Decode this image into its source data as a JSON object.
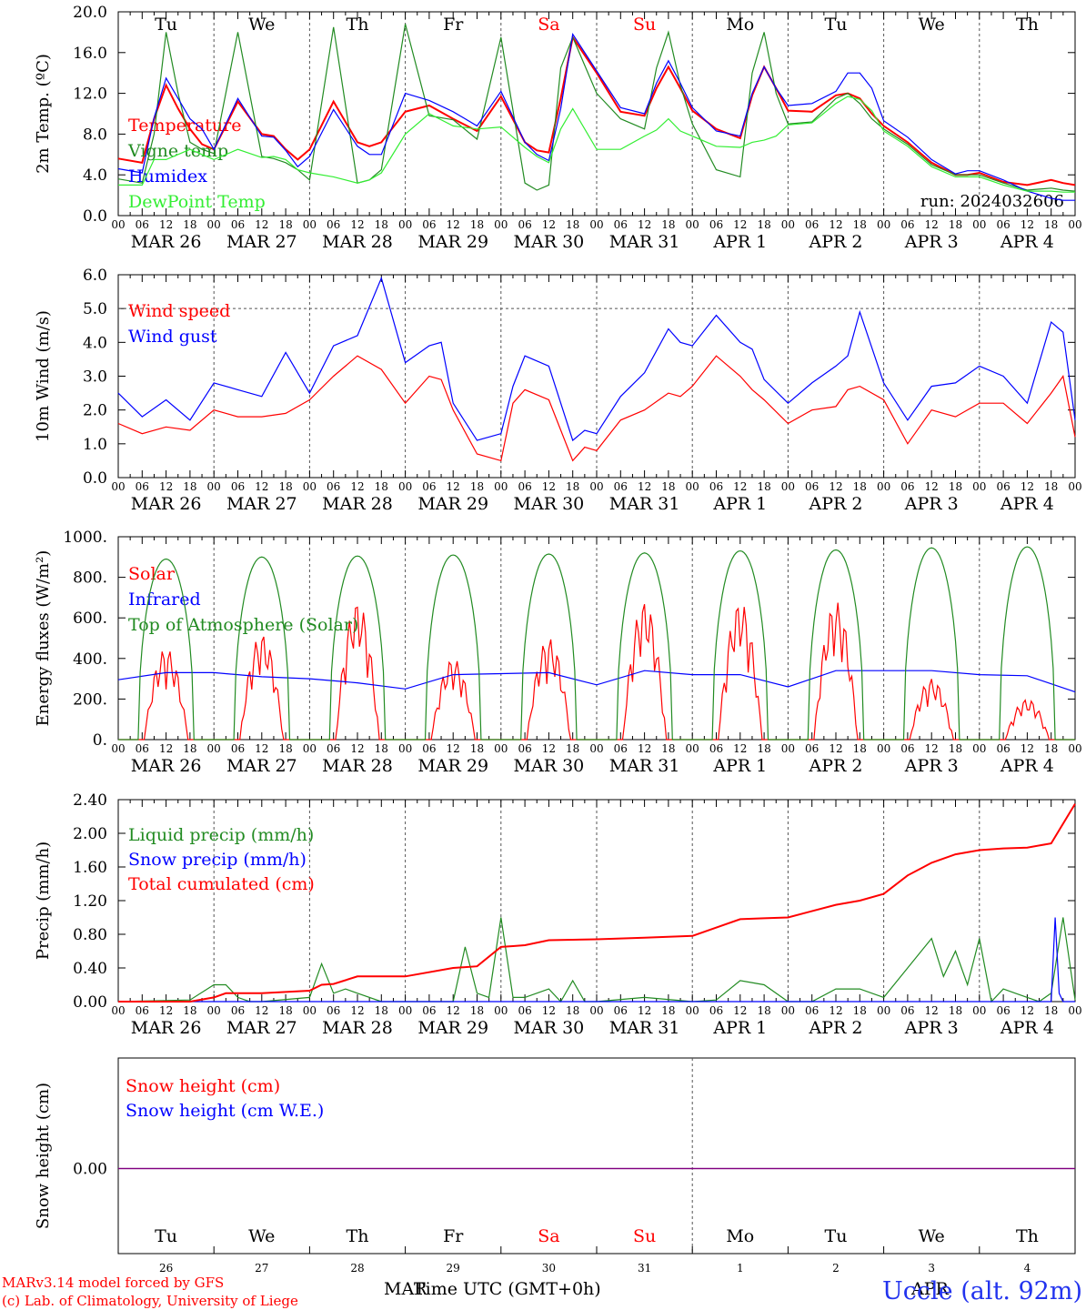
{
  "colors": {
    "red": "#ff0000",
    "green": "#228b22",
    "blue": "#0000ff",
    "lightgreen": "#33ee33",
    "purple": "#800080",
    "grid": "#555555"
  },
  "time_axis": {
    "hour_ticks": [
      "00",
      "06",
      "12",
      "18"
    ],
    "final_tick": "00",
    "date_labels": [
      "MAR 26",
      "MAR 27",
      "MAR 28",
      "MAR 29",
      "MAR 30",
      "MAR 31",
      "APR  1",
      "APR  2",
      "APR  3",
      "APR  4"
    ],
    "day_names": [
      "Tu",
      "We",
      "Th",
      "Fr",
      "Sa",
      "Su",
      "Mo",
      "Tu",
      "We",
      "Th"
    ],
    "day_colors": [
      "black",
      "black",
      "black",
      "black",
      "red",
      "red",
      "black",
      "black",
      "black",
      "black"
    ],
    "day_numbers": [
      "26",
      "27",
      "28",
      "29",
      "30",
      "31",
      "1",
      "2",
      "3",
      "4"
    ],
    "month_left": "MAR",
    "month_right": "APR",
    "xlabel": "Time UTC (GMT+0h)"
  },
  "footer": {
    "model_line": "MARv3.14 model forced by GFS",
    "credit_line": "(c) Lab. of Climatology, University of Liege",
    "station": "Uccle (alt. 92m)"
  },
  "chart_data": [
    {
      "type": "line",
      "ylabel": "2m Temp. (ºC)",
      "ylim": [
        0,
        20
      ],
      "yticks": [
        "0.0",
        "4.0",
        "8.0",
        "12.0",
        "16.0",
        "20.0"
      ],
      "run_label": "run: 2024032606",
      "x_hours": [
        0,
        6,
        9,
        12,
        15,
        18,
        21,
        24,
        30,
        36,
        39,
        42,
        45,
        48,
        54,
        60,
        63,
        66,
        72,
        78,
        84,
        90,
        96,
        102,
        105,
        108,
        111,
        114,
        120,
        126,
        132,
        135,
        138,
        141,
        144,
        150,
        156,
        159,
        162,
        165,
        168,
        174,
        180,
        183,
        186,
        189,
        192,
        198,
        204,
        210,
        213,
        216,
        222,
        228,
        234,
        237,
        240
      ],
      "series": [
        {
          "name": "Temperature",
          "color": "red",
          "values": [
            5.6,
            5.2,
            9.5,
            12.8,
            10.5,
            8.5,
            7,
            6.5,
            11.2,
            8,
            7.8,
            6.5,
            5.5,
            6.5,
            11.2,
            7.2,
            6.8,
            7.2,
            10.2,
            10.8,
            9.5,
            8.3,
            11.7,
            7.2,
            6.4,
            6.2,
            11.5,
            17.5,
            14,
            10.2,
            9.8,
            12.5,
            14.6,
            12.5,
            10.3,
            8.5,
            7.6,
            11.8,
            14.6,
            12.5,
            10.3,
            10.2,
            11.8,
            12,
            11.5,
            10,
            8.8,
            7.2,
            5.2,
            4,
            4,
            4.2,
            3.3,
            3,
            3.5,
            3.2,
            3
          ]
        },
        {
          "name": "Vigne temp",
          "color": "green",
          "values": [
            3.6,
            3.2,
            8,
            18,
            12,
            7.2,
            6.5,
            6.1,
            18,
            5.8,
            5.6,
            5.2,
            4.5,
            3.5,
            18.5,
            3.2,
            3.5,
            4.5,
            18.8,
            9.8,
            9.4,
            7.5,
            17.5,
            3.2,
            2.5,
            3,
            14.5,
            17.5,
            12,
            9.5,
            8.5,
            14.5,
            18,
            12.8,
            9,
            4.5,
            3.8,
            14,
            18,
            12,
            9,
            9.2,
            11.5,
            12,
            11,
            9.5,
            8.5,
            7,
            5,
            4,
            4,
            4,
            3.2,
            2.5,
            2.7,
            2.5,
            2.4
          ]
        },
        {
          "name": "Humidex",
          "color": "blue",
          "values": [
            4.6,
            4.2,
            9.6,
            13.5,
            11.5,
            9.5,
            8.5,
            6.5,
            11.5,
            7.8,
            7.7,
            6.4,
            4.8,
            5.8,
            10.4,
            6.8,
            6,
            6,
            12,
            11.3,
            10.2,
            8.8,
            12.2,
            7.2,
            6,
            5.4,
            10.5,
            17.8,
            14.2,
            10.6,
            10,
            13,
            15.2,
            13,
            10.6,
            8.3,
            7.8,
            12,
            14.6,
            12.5,
            10.8,
            11,
            12.2,
            14,
            14,
            12.5,
            9.3,
            7.7,
            5.5,
            4.1,
            4.4,
            4.4,
            3.5,
            2.4,
            1.7,
            1.5,
            1.5
          ]
        },
        {
          "name": "DewPoint Temp",
          "color": "lightgreen",
          "values": [
            3,
            3,
            5.5,
            5.5,
            6,
            6.5,
            6,
            5.5,
            6.5,
            5.7,
            5.8,
            5.5,
            4.5,
            4.2,
            3.8,
            3.2,
            3.5,
            4.2,
            8,
            10,
            8.8,
            8.5,
            8.7,
            6.7,
            5.8,
            5.2,
            8.5,
            10.5,
            6.5,
            6.5,
            7.8,
            8.4,
            9.5,
            8.3,
            7.8,
            6.8,
            6.7,
            7.2,
            7.4,
            7.8,
            8.9,
            9.1,
            11,
            11.7,
            11.4,
            10.3,
            8.3,
            6.8,
            4.8,
            3.8,
            3.8,
            3.8,
            3,
            2.4,
            2.4,
            2.3,
            2.3
          ]
        }
      ]
    },
    {
      "type": "line",
      "ylabel": "10m Wind (m/s)",
      "ylim": [
        0,
        6
      ],
      "yticks": [
        "0.0",
        "1.0",
        "2.0",
        "3.0",
        "4.0",
        "5.0",
        "6.0"
      ],
      "x_hours": [
        0,
        6,
        12,
        18,
        24,
        30,
        36,
        42,
        48,
        54,
        60,
        66,
        72,
        78,
        81,
        84,
        90,
        96,
        99,
        102,
        108,
        114,
        117,
        120,
        126,
        132,
        138,
        141,
        144,
        150,
        156,
        159,
        162,
        168,
        174,
        180,
        183,
        186,
        192,
        198,
        204,
        210,
        216,
        222,
        228,
        234,
        237,
        240
      ],
      "series": [
        {
          "name": "Wind speed",
          "color": "red",
          "values": [
            1.6,
            1.3,
            1.5,
            1.4,
            2.0,
            1.8,
            1.8,
            1.9,
            2.3,
            3.0,
            3.6,
            3.2,
            2.2,
            3.0,
            2.9,
            2.0,
            0.7,
            0.5,
            2.2,
            2.6,
            2.3,
            0.5,
            0.9,
            0.8,
            1.7,
            2.0,
            2.5,
            2.4,
            2.7,
            3.6,
            3.0,
            2.6,
            2.3,
            1.6,
            2.0,
            2.1,
            2.6,
            2.7,
            2.3,
            1.0,
            2.0,
            1.8,
            2.2,
            2.2,
            1.6,
            2.5,
            3.0,
            1.2
          ]
        },
        {
          "name": "Wind gust",
          "color": "blue",
          "values": [
            2.5,
            1.8,
            2.3,
            1.7,
            2.8,
            2.6,
            2.4,
            3.7,
            2.5,
            3.9,
            4.2,
            5.9,
            3.4,
            3.9,
            4.0,
            2.2,
            1.1,
            1.3,
            2.7,
            3.6,
            3.3,
            1.1,
            1.4,
            1.3,
            2.4,
            3.1,
            4.4,
            4.0,
            3.9,
            4.8,
            4.0,
            3.8,
            2.9,
            2.2,
            2.8,
            3.3,
            3.6,
            4.9,
            2.8,
            1.7,
            2.7,
            2.8,
            3.3,
            3.0,
            2.2,
            4.6,
            4.3,
            1.7
          ]
        }
      ]
    },
    {
      "type": "line",
      "ylabel": "Energy fluxes (W/m²)",
      "ylim": [
        0,
        1000
      ],
      "yticks": [
        "0.",
        "200.",
        "400.",
        "600.",
        "800.",
        "1000."
      ],
      "daily_peak_hour": 12,
      "series": [
        {
          "name": "Solar",
          "color": "red",
          "daily_peaks": [
            450,
            520,
            680,
            400,
            500,
            680,
            680,
            680,
            300,
            200
          ]
        },
        {
          "name": "Infrared",
          "color": "blue",
          "values_note": "",
          "x_hours": [
            0,
            12,
            24,
            36,
            48,
            60,
            72,
            84,
            96,
            108,
            120,
            132,
            144,
            156,
            168,
            180,
            192,
            204,
            216,
            228,
            240
          ],
          "values": [
            295,
            330,
            330,
            310,
            300,
            280,
            250,
            320,
            325,
            330,
            270,
            340,
            320,
            320,
            260,
            340,
            340,
            340,
            320,
            315,
            235
          ]
        },
        {
          "name": "Top of Atmosphere (Solar)",
          "color": "green",
          "daily_peaks": [
            890,
            900,
            905,
            910,
            915,
            920,
            930,
            935,
            945,
            950
          ]
        }
      ]
    },
    {
      "type": "line",
      "ylabel": "Precip (mm/h)",
      "ylim": [
        0,
        2.4
      ],
      "yticks": [
        "0.00",
        "0.40",
        "0.80",
        "1.20",
        "1.60",
        "2.00",
        "2.40"
      ],
      "series": [
        {
          "name": "Liquid precip (mm/h)",
          "color": "green",
          "x_hours": [
            0,
            18,
            24,
            27,
            30,
            33,
            36,
            48,
            51,
            54,
            57,
            60,
            66,
            84,
            87,
            90,
            93,
            96,
            99,
            102,
            108,
            111,
            114,
            117,
            120,
            132,
            144,
            150,
            156,
            162,
            168,
            174,
            180,
            186,
            192,
            198,
            204,
            207,
            210,
            213,
            216,
            219,
            222,
            225,
            228,
            231,
            234,
            237,
            240
          ],
          "values": [
            0,
            0.02,
            0.2,
            0.2,
            0.05,
            0,
            0,
            0.05,
            0.45,
            0.1,
            0.15,
            0.1,
            0,
            0,
            0.65,
            0.1,
            0.05,
            1.0,
            0.05,
            0.05,
            0.15,
            0,
            0.25,
            0,
            0,
            0.05,
            0,
            0.02,
            0.25,
            0.2,
            0,
            0,
            0.15,
            0.15,
            0.05,
            0.4,
            0.75,
            0.3,
            0.6,
            0.2,
            0.75,
            0,
            0.15,
            0.1,
            0.05,
            0,
            0.1,
            1.0,
            0.02
          ]
        },
        {
          "name": "Snow precip (mm/h)",
          "color": "blue",
          "x_hours": [
            0,
            234,
            235,
            236,
            237,
            240
          ],
          "values": [
            0,
            0,
            1.0,
            0.1,
            0,
            0
          ]
        },
        {
          "name": "Total cumulated (cm)",
          "color": "red",
          "x_hours": [
            0,
            18,
            24,
            27,
            36,
            48,
            51,
            54,
            60,
            72,
            84,
            90,
            96,
            99,
            102,
            108,
            120,
            132,
            144,
            156,
            162,
            168,
            180,
            186,
            192,
            198,
            204,
            210,
            216,
            222,
            228,
            234,
            240
          ],
          "values": [
            0,
            0,
            0.05,
            0.1,
            0.1,
            0.13,
            0.2,
            0.21,
            0.3,
            0.3,
            0.4,
            0.42,
            0.65,
            0.66,
            0.67,
            0.73,
            0.74,
            0.76,
            0.78,
            0.98,
            0.99,
            1.0,
            1.15,
            1.2,
            1.28,
            1.5,
            1.65,
            1.75,
            1.8,
            1.82,
            1.83,
            1.88,
            2.35
          ]
        }
      ]
    },
    {
      "type": "line",
      "ylabel": "Snow height (cm)",
      "yticks": [
        "0.00"
      ],
      "series": [
        {
          "name": "Snow height (cm)",
          "color": "red",
          "values": [
            0,
            0
          ]
        },
        {
          "name": "Snow height (cm W.E.)",
          "color": "blue",
          "values": [
            0,
            0
          ]
        }
      ]
    }
  ]
}
